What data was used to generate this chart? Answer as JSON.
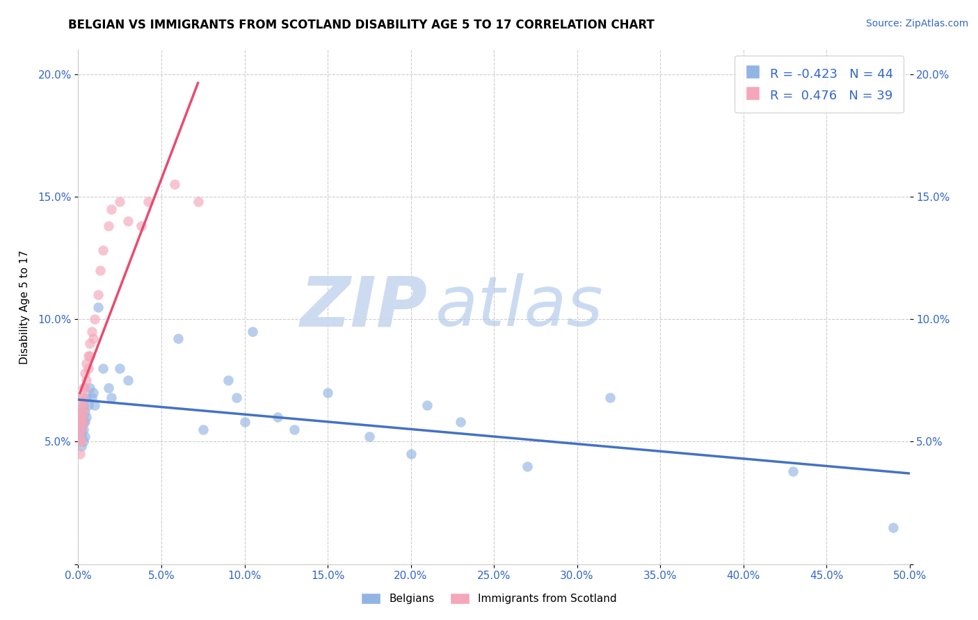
{
  "title": "BELGIAN VS IMMIGRANTS FROM SCOTLAND DISABILITY AGE 5 TO 17 CORRELATION CHART",
  "source": "Source: ZipAtlas.com",
  "ylabel": "Disability Age 5 to 17",
  "xlabel": "",
  "xlim": [
    0.0,
    0.5
  ],
  "ylim": [
    0.0,
    0.21
  ],
  "x_ticks": [
    0.0,
    0.05,
    0.1,
    0.15,
    0.2,
    0.25,
    0.3,
    0.35,
    0.4,
    0.45,
    0.5
  ],
  "x_tick_labels": [
    "0.0%",
    "5.0%",
    "10.0%",
    "15.0%",
    "20.0%",
    "25.0%",
    "30.0%",
    "35.0%",
    "40.0%",
    "45.0%",
    "50.0%"
  ],
  "y_ticks": [
    0.0,
    0.05,
    0.1,
    0.15,
    0.2
  ],
  "y_tick_labels": [
    "",
    "5.0%",
    "10.0%",
    "15.0%",
    "20.0%"
  ],
  "belgian_color": "#92b4e3",
  "scotland_color": "#f4a7b9",
  "trend_belgian_color": "#4472c4",
  "trend_scotland_color": "#e84b6e",
  "trend_scotland_dash_color": "#f0a8b8",
  "R_belgian": -0.423,
  "N_belgian": 44,
  "R_scotland": 0.476,
  "N_scotland": 39,
  "belgian_x": [
    0.001,
    0.001,
    0.001,
    0.002,
    0.002,
    0.002,
    0.002,
    0.003,
    0.003,
    0.003,
    0.003,
    0.004,
    0.004,
    0.004,
    0.005,
    0.005,
    0.006,
    0.007,
    0.008,
    0.009,
    0.01,
    0.012,
    0.015,
    0.018,
    0.02,
    0.025,
    0.03,
    0.06,
    0.075,
    0.09,
    0.095,
    0.1,
    0.105,
    0.12,
    0.13,
    0.15,
    0.175,
    0.2,
    0.21,
    0.23,
    0.27,
    0.32,
    0.43,
    0.49
  ],
  "belgian_y": [
    0.062,
    0.058,
    0.055,
    0.06,
    0.055,
    0.052,
    0.048,
    0.065,
    0.058,
    0.055,
    0.05,
    0.062,
    0.058,
    0.052,
    0.068,
    0.06,
    0.065,
    0.072,
    0.068,
    0.07,
    0.065,
    0.105,
    0.08,
    0.072,
    0.068,
    0.08,
    0.075,
    0.092,
    0.055,
    0.075,
    0.068,
    0.058,
    0.095,
    0.06,
    0.055,
    0.07,
    0.052,
    0.045,
    0.065,
    0.058,
    0.04,
    0.068,
    0.038,
    0.015
  ],
  "scotland_x": [
    0.001,
    0.001,
    0.001,
    0.001,
    0.001,
    0.002,
    0.002,
    0.002,
    0.002,
    0.002,
    0.002,
    0.002,
    0.003,
    0.003,
    0.003,
    0.003,
    0.003,
    0.004,
    0.004,
    0.005,
    0.005,
    0.006,
    0.006,
    0.007,
    0.007,
    0.008,
    0.009,
    0.01,
    0.012,
    0.013,
    0.015,
    0.018,
    0.02,
    0.025,
    0.03,
    0.038,
    0.042,
    0.058,
    0.072
  ],
  "scotland_y": [
    0.058,
    0.055,
    0.052,
    0.05,
    0.045,
    0.068,
    0.065,
    0.062,
    0.06,
    0.058,
    0.055,
    0.05,
    0.072,
    0.068,
    0.065,
    0.062,
    0.058,
    0.078,
    0.072,
    0.082,
    0.075,
    0.085,
    0.08,
    0.09,
    0.085,
    0.095,
    0.092,
    0.1,
    0.11,
    0.12,
    0.128,
    0.138,
    0.145,
    0.148,
    0.14,
    0.138,
    0.148,
    0.155,
    0.148
  ]
}
